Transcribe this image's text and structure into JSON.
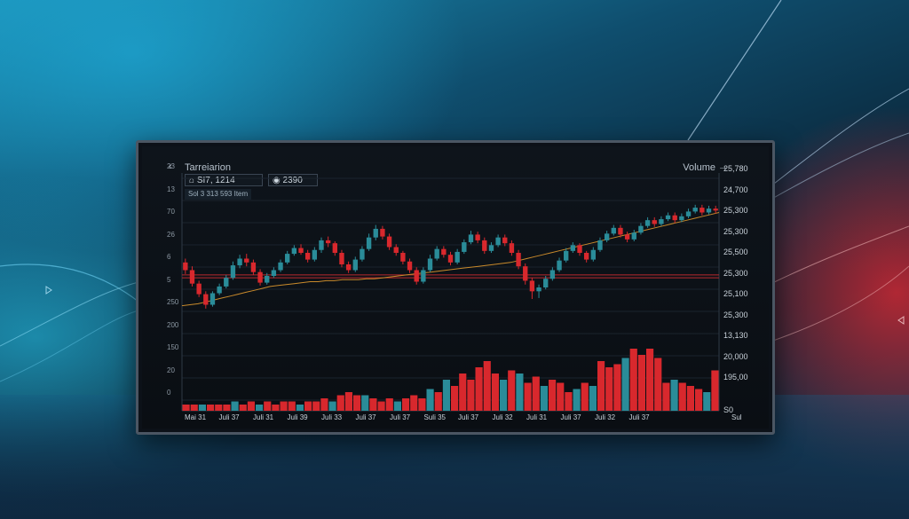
{
  "header": {
    "title": "Tarreiarion",
    "back_icon": "chevron-left-icon",
    "volume_label": "Volume",
    "forward_icon": "arrow-right-icon",
    "symbol_value": "SI7, 1214",
    "price_value": "2390",
    "subinfo": "Sol 3 313 593 Item"
  },
  "left_axis_labels": [
    "23",
    "13",
    "70",
    "26",
    "6",
    "5",
    "250",
    "200",
    "150",
    "20",
    "0"
  ],
  "right_axis_labels": [
    "25,780",
    "24,700",
    "25,300",
    "25,300",
    "25,500",
    "25,300",
    "25,100",
    "25,300",
    "13,130",
    "20,000",
    "195,00",
    "S0"
  ],
  "x_axis_labels": [
    "Mai 31",
    "Juli 37",
    "Juli 31",
    "Juli 39",
    "Juli 33",
    "Juli 37",
    "Juli 37",
    "Suli 35",
    "Juli 37",
    "Juli 32",
    "Juli 31",
    "Juli 37",
    "Juli 32",
    "Juli 37",
    "Sul"
  ],
  "colors": {
    "up": "#2a8c99",
    "down": "#d8282d",
    "moving_average": "#c98a2b",
    "resistance_line": "#b82a2e"
  },
  "chart_data": {
    "type": "candlestick",
    "title": "Tarreiarion",
    "ylabel_right": "Volume",
    "resistance_levels": [
      3.4,
      3.7
    ],
    "y_price_range": [
      0,
      12
    ],
    "candles": [
      {
        "o": 5.0,
        "c": 4.2,
        "h": 5.4,
        "l": 3.8
      },
      {
        "o": 4.2,
        "c": 2.8,
        "h": 4.6,
        "l": 2.5
      },
      {
        "o": 2.8,
        "c": 1.7,
        "h": 3.1,
        "l": 1.4
      },
      {
        "o": 1.7,
        "c": 0.6,
        "h": 2.0,
        "l": 0.2
      },
      {
        "o": 0.6,
        "c": 1.8,
        "h": 2.0,
        "l": 0.4
      },
      {
        "o": 1.8,
        "c": 2.5,
        "h": 2.8,
        "l": 1.6
      },
      {
        "o": 2.5,
        "c": 3.4,
        "h": 3.7,
        "l": 2.3
      },
      {
        "o": 3.4,
        "c": 4.7,
        "h": 5.1,
        "l": 3.2
      },
      {
        "o": 4.7,
        "c": 5.4,
        "h": 5.8,
        "l": 4.4
      },
      {
        "o": 5.4,
        "c": 5.0,
        "h": 5.9,
        "l": 4.6
      },
      {
        "o": 5.0,
        "c": 4.0,
        "h": 5.3,
        "l": 3.7
      },
      {
        "o": 4.0,
        "c": 2.9,
        "h": 4.3,
        "l": 2.6
      },
      {
        "o": 2.9,
        "c": 3.6,
        "h": 3.9,
        "l": 2.7
      },
      {
        "o": 3.6,
        "c": 4.2,
        "h": 4.5,
        "l": 3.4
      },
      {
        "o": 4.2,
        "c": 5.0,
        "h": 5.3,
        "l": 4.0
      },
      {
        "o": 5.0,
        "c": 5.9,
        "h": 6.2,
        "l": 4.8
      },
      {
        "o": 5.9,
        "c": 6.5,
        "h": 6.8,
        "l": 5.7
      },
      {
        "o": 6.5,
        "c": 6.0,
        "h": 6.9,
        "l": 5.8
      },
      {
        "o": 6.0,
        "c": 5.3,
        "h": 6.3,
        "l": 5.0
      },
      {
        "o": 5.3,
        "c": 6.3,
        "h": 6.6,
        "l": 5.1
      },
      {
        "o": 6.3,
        "c": 7.3,
        "h": 7.6,
        "l": 6.0
      },
      {
        "o": 7.3,
        "c": 7.0,
        "h": 7.7,
        "l": 6.6
      },
      {
        "o": 7.0,
        "c": 6.0,
        "h": 7.2,
        "l": 5.7
      },
      {
        "o": 6.0,
        "c": 4.8,
        "h": 6.3,
        "l": 4.5
      },
      {
        "o": 4.8,
        "c": 4.2,
        "h": 5.1,
        "l": 3.9
      },
      {
        "o": 4.2,
        "c": 5.3,
        "h": 5.6,
        "l": 4.0
      },
      {
        "o": 5.3,
        "c": 6.4,
        "h": 6.7,
        "l": 5.1
      },
      {
        "o": 6.4,
        "c": 7.6,
        "h": 8.0,
        "l": 6.2
      },
      {
        "o": 7.6,
        "c": 8.5,
        "h": 8.9,
        "l": 7.3
      },
      {
        "o": 8.5,
        "c": 7.7,
        "h": 8.8,
        "l": 7.4
      },
      {
        "o": 7.7,
        "c": 6.6,
        "h": 8.0,
        "l": 6.3
      },
      {
        "o": 6.6,
        "c": 6.0,
        "h": 6.9,
        "l": 5.7
      },
      {
        "o": 6.0,
        "c": 5.1,
        "h": 6.2,
        "l": 4.8
      },
      {
        "o": 5.1,
        "c": 4.2,
        "h": 5.4,
        "l": 3.9
      },
      {
        "o": 4.2,
        "c": 3.0,
        "h": 4.5,
        "l": 2.7
      },
      {
        "o": 3.0,
        "c": 4.2,
        "h": 4.5,
        "l": 2.8
      },
      {
        "o": 4.2,
        "c": 5.4,
        "h": 5.8,
        "l": 4.0
      },
      {
        "o": 5.4,
        "c": 6.4,
        "h": 6.7,
        "l": 5.2
      },
      {
        "o": 6.4,
        "c": 5.8,
        "h": 6.7,
        "l": 5.5
      },
      {
        "o": 5.8,
        "c": 5.0,
        "h": 6.1,
        "l": 4.7
      },
      {
        "o": 5.0,
        "c": 6.1,
        "h": 6.4,
        "l": 4.8
      },
      {
        "o": 6.1,
        "c": 7.1,
        "h": 7.4,
        "l": 5.9
      },
      {
        "o": 7.1,
        "c": 7.9,
        "h": 8.3,
        "l": 6.9
      },
      {
        "o": 7.9,
        "c": 7.3,
        "h": 8.2,
        "l": 7.0
      },
      {
        "o": 7.3,
        "c": 6.2,
        "h": 7.6,
        "l": 5.9
      },
      {
        "o": 6.2,
        "c": 6.8,
        "h": 7.1,
        "l": 6.0
      },
      {
        "o": 6.8,
        "c": 7.6,
        "h": 7.9,
        "l": 6.6
      },
      {
        "o": 7.6,
        "c": 7.0,
        "h": 7.9,
        "l": 6.7
      },
      {
        "o": 7.0,
        "c": 6.0,
        "h": 7.3,
        "l": 5.7
      },
      {
        "o": 6.0,
        "c": 4.6,
        "h": 6.3,
        "l": 4.3
      },
      {
        "o": 4.6,
        "c": 3.1,
        "h": 4.9,
        "l": 2.7
      },
      {
        "o": 3.1,
        "c": 2.0,
        "h": 3.4,
        "l": 1.2
      },
      {
        "o": 2.0,
        "c": 2.4,
        "h": 2.7,
        "l": 1.3
      },
      {
        "o": 2.4,
        "c": 3.3,
        "h": 3.6,
        "l": 2.2
      },
      {
        "o": 3.3,
        "c": 4.2,
        "h": 4.5,
        "l": 3.1
      },
      {
        "o": 4.2,
        "c": 5.2,
        "h": 5.5,
        "l": 4.0
      },
      {
        "o": 5.2,
        "c": 6.2,
        "h": 6.5,
        "l": 5.0
      },
      {
        "o": 6.2,
        "c": 6.8,
        "h": 7.1,
        "l": 6.0
      },
      {
        "o": 6.8,
        "c": 6.0,
        "h": 7.0,
        "l": 5.7
      },
      {
        "o": 6.0,
        "c": 5.3,
        "h": 6.2,
        "l": 5.0
      },
      {
        "o": 5.3,
        "c": 6.3,
        "h": 6.6,
        "l": 5.1
      },
      {
        "o": 6.3,
        "c": 7.3,
        "h": 7.6,
        "l": 6.1
      },
      {
        "o": 7.3,
        "c": 8.0,
        "h": 8.3,
        "l": 7.1
      },
      {
        "o": 8.0,
        "c": 8.6,
        "h": 8.9,
        "l": 7.8
      },
      {
        "o": 8.6,
        "c": 7.9,
        "h": 8.9,
        "l": 7.6
      },
      {
        "o": 7.9,
        "c": 7.4,
        "h": 8.2,
        "l": 7.1
      },
      {
        "o": 7.4,
        "c": 8.1,
        "h": 8.4,
        "l": 7.2
      },
      {
        "o": 8.1,
        "c": 8.8,
        "h": 9.1,
        "l": 7.9
      },
      {
        "o": 8.8,
        "c": 9.4,
        "h": 9.7,
        "l": 8.6
      },
      {
        "o": 9.4,
        "c": 9.0,
        "h": 9.7,
        "l": 8.7
      },
      {
        "o": 9.0,
        "c": 9.5,
        "h": 9.8,
        "l": 8.8
      },
      {
        "o": 9.5,
        "c": 9.9,
        "h": 10.2,
        "l": 9.3
      },
      {
        "o": 9.9,
        "c": 9.4,
        "h": 10.2,
        "l": 9.1
      },
      {
        "o": 9.4,
        "c": 9.8,
        "h": 10.1,
        "l": 9.2
      },
      {
        "o": 9.8,
        "c": 10.3,
        "h": 10.6,
        "l": 9.6
      },
      {
        "o": 10.3,
        "c": 10.7,
        "h": 11.0,
        "l": 10.1
      },
      {
        "o": 10.7,
        "c": 10.2,
        "h": 11.0,
        "l": 9.9
      },
      {
        "o": 10.2,
        "c": 10.6,
        "h": 10.9,
        "l": 10.0
      },
      {
        "o": 10.6,
        "c": 10.4,
        "h": 10.9,
        "l": 10.1
      }
    ],
    "moving_average": [
      0.5,
      0.6,
      0.7,
      0.9,
      1.1,
      1.3,
      1.5,
      1.7,
      1.9,
      2.1,
      2.3,
      2.5,
      2.6,
      2.7,
      2.8,
      2.9,
      3.0,
      3.0,
      3.1,
      3.1,
      3.2,
      3.2,
      3.2,
      3.3,
      3.3,
      3.4,
      3.5,
      3.6,
      3.7,
      3.8,
      3.9,
      4.0,
      4.1,
      4.2,
      4.3,
      4.4,
      4.5,
      4.6,
      4.7,
      4.8,
      4.9,
      5.0,
      5.2,
      5.4,
      5.6,
      5.8,
      6.0,
      6.2,
      6.4,
      6.6,
      6.8,
      7.0,
      7.2,
      7.4,
      7.6,
      7.8,
      8.0,
      8.2,
      8.4,
      8.6,
      8.8,
      9.0,
      9.2,
      9.4,
      9.6,
      9.8,
      10.0,
      10.2
    ],
    "volumes": [
      {
        "v": 2,
        "d": true
      },
      {
        "v": 2,
        "d": true
      },
      {
        "v": 2,
        "d": false
      },
      {
        "v": 2,
        "d": true
      },
      {
        "v": 2,
        "d": true
      },
      {
        "v": 2,
        "d": true
      },
      {
        "v": 3,
        "d": false
      },
      {
        "v": 2,
        "d": true
      },
      {
        "v": 3,
        "d": true
      },
      {
        "v": 2,
        "d": false
      },
      {
        "v": 3,
        "d": true
      },
      {
        "v": 2,
        "d": true
      },
      {
        "v": 3,
        "d": true
      },
      {
        "v": 3,
        "d": true
      },
      {
        "v": 2,
        "d": false
      },
      {
        "v": 3,
        "d": true
      },
      {
        "v": 3,
        "d": true
      },
      {
        "v": 4,
        "d": true
      },
      {
        "v": 3,
        "d": false
      },
      {
        "v": 5,
        "d": true
      },
      {
        "v": 6,
        "d": true
      },
      {
        "v": 5,
        "d": true
      },
      {
        "v": 5,
        "d": false
      },
      {
        "v": 4,
        "d": true
      },
      {
        "v": 3,
        "d": true
      },
      {
        "v": 4,
        "d": true
      },
      {
        "v": 3,
        "d": false
      },
      {
        "v": 4,
        "d": true
      },
      {
        "v": 5,
        "d": true
      },
      {
        "v": 4,
        "d": true
      },
      {
        "v": 7,
        "d": false
      },
      {
        "v": 6,
        "d": true
      },
      {
        "v": 10,
        "d": false
      },
      {
        "v": 8,
        "d": true
      },
      {
        "v": 12,
        "d": true
      },
      {
        "v": 10,
        "d": true
      },
      {
        "v": 14,
        "d": true
      },
      {
        "v": 16,
        "d": true
      },
      {
        "v": 12,
        "d": true
      },
      {
        "v": 10,
        "d": false
      },
      {
        "v": 13,
        "d": true
      },
      {
        "v": 12,
        "d": false
      },
      {
        "v": 9,
        "d": true
      },
      {
        "v": 11,
        "d": true
      },
      {
        "v": 8,
        "d": false
      },
      {
        "v": 10,
        "d": true
      },
      {
        "v": 9,
        "d": true
      },
      {
        "v": 6,
        "d": true
      },
      {
        "v": 7,
        "d": false
      },
      {
        "v": 9,
        "d": true
      },
      {
        "v": 8,
        "d": false
      },
      {
        "v": 16,
        "d": true
      },
      {
        "v": 14,
        "d": true
      },
      {
        "v": 15,
        "d": true
      },
      {
        "v": 17,
        "d": false
      },
      {
        "v": 20,
        "d": true
      },
      {
        "v": 18,
        "d": true
      },
      {
        "v": 20,
        "d": true
      },
      {
        "v": 17,
        "d": true
      },
      {
        "v": 9,
        "d": true
      },
      {
        "v": 10,
        "d": false
      },
      {
        "v": 9,
        "d": true
      },
      {
        "v": 8,
        "d": true
      },
      {
        "v": 7,
        "d": true
      },
      {
        "v": 6,
        "d": false
      },
      {
        "v": 13,
        "d": true
      }
    ]
  }
}
